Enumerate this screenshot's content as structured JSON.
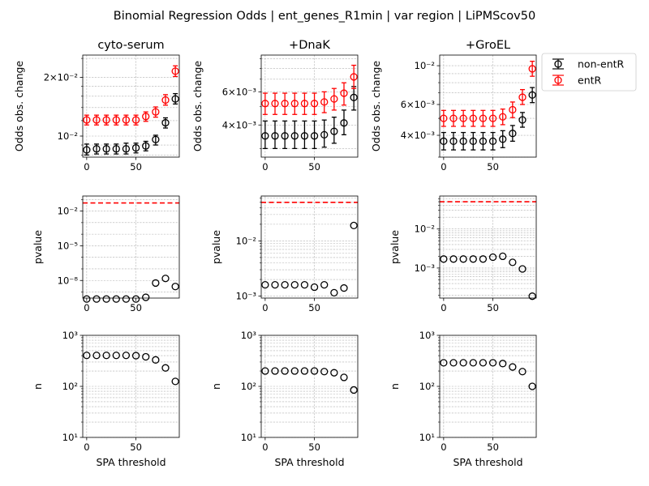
{
  "figure": {
    "title": "Binomial Regression Odds | ent_genes_R1min | var region | LiPMScov50"
  },
  "legend": {
    "placement": "right of top-right panel",
    "entries": [
      {
        "label": "non-entR",
        "color": "#000000"
      },
      {
        "label": "entR",
        "color": "#ff0000"
      }
    ]
  },
  "chart_data": [
    {
      "type": "scatter",
      "subplot": "odds-cyto-serum",
      "title": "cyto-serum",
      "xlabel": "",
      "ylabel": "Odds obs. change",
      "xlim": [
        -4,
        94
      ],
      "yscale": "log",
      "ylim": [
        0.0078,
        0.026
      ],
      "grid": true,
      "xticks": [
        0,
        50
      ],
      "xticklabels": [
        "0",
        "50"
      ],
      "yticks": [
        0.01,
        0.02
      ],
      "yticklabels": [
        "10⁻²",
        "2×10⁻²"
      ],
      "minor_yticks": [
        0.008,
        0.009,
        0.012,
        0.014,
        0.016,
        0.018,
        0.025
      ],
      "series": [
        {
          "name": "non-entR",
          "color": "#000000",
          "x": [
            0,
            10,
            20,
            30,
            40,
            50,
            60,
            70,
            80,
            90
          ],
          "y": [
            0.0085,
            0.0086,
            0.0086,
            0.0086,
            0.0086,
            0.0087,
            0.0089,
            0.0096,
            0.0117,
            0.0155
          ],
          "yerr_low": [
            0.008,
            0.0081,
            0.0081,
            0.0081,
            0.0081,
            0.0082,
            0.0084,
            0.009,
            0.011,
            0.0146
          ],
          "yerr_high": [
            0.0091,
            0.0091,
            0.0091,
            0.0091,
            0.0092,
            0.0092,
            0.0094,
            0.0101,
            0.0124,
            0.0165
          ]
        },
        {
          "name": "entR",
          "color": "#ff0000",
          "x": [
            0,
            10,
            20,
            30,
            40,
            50,
            60,
            70,
            80,
            90
          ],
          "y": [
            0.0121,
            0.0121,
            0.0121,
            0.0121,
            0.0121,
            0.0121,
            0.0126,
            0.0133,
            0.0153,
            0.0215
          ],
          "yerr_low": [
            0.0114,
            0.0114,
            0.0114,
            0.0114,
            0.0114,
            0.0114,
            0.0119,
            0.0125,
            0.0144,
            0.0202
          ],
          "yerr_high": [
            0.0128,
            0.0128,
            0.0128,
            0.0128,
            0.0128,
            0.0128,
            0.0133,
            0.0141,
            0.0163,
            0.0229
          ]
        }
      ]
    },
    {
      "type": "scatter",
      "subplot": "odds-dnak",
      "title": "+DnaK",
      "xlabel": "",
      "ylabel": "Odds obs. change",
      "xlim": [
        -4,
        94
      ],
      "yscale": "log",
      "ylim": [
        0.0027,
        0.0094
      ],
      "grid": true,
      "xticks": [
        0,
        50
      ],
      "xticklabels": [
        "0",
        "50"
      ],
      "yticks": [
        0.004,
        0.006
      ],
      "yticklabels": [
        "4×10⁻³",
        "6×10⁻³"
      ],
      "minor_yticks": [
        0.003,
        0.005,
        0.007,
        0.008,
        0.009
      ],
      "series": [
        {
          "name": "non-entR",
          "color": "#000000",
          "x": [
            0,
            10,
            20,
            30,
            40,
            50,
            60,
            70,
            80,
            90
          ],
          "y": [
            0.0035,
            0.0035,
            0.0035,
            0.0035,
            0.0035,
            0.0035,
            0.00355,
            0.0037,
            0.0041,
            0.0056
          ],
          "yerr_low": [
            0.003,
            0.003,
            0.003,
            0.003,
            0.003,
            0.003,
            0.00305,
            0.0032,
            0.00355,
            0.0048
          ],
          "yerr_high": [
            0.0042,
            0.0042,
            0.0042,
            0.0042,
            0.0042,
            0.0042,
            0.00425,
            0.0044,
            0.0048,
            0.0064
          ]
        },
        {
          "name": "entR",
          "color": "#ff0000",
          "x": [
            0,
            10,
            20,
            30,
            40,
            50,
            60,
            70,
            80,
            90
          ],
          "y": [
            0.0052,
            0.0052,
            0.0052,
            0.0052,
            0.0052,
            0.0052,
            0.0053,
            0.0055,
            0.0059,
            0.0072
          ],
          "yerr_low": [
            0.00455,
            0.00455,
            0.00455,
            0.00455,
            0.00455,
            0.00455,
            0.00465,
            0.0048,
            0.0051,
            0.00625
          ],
          "yerr_high": [
            0.0059,
            0.0059,
            0.0059,
            0.0059,
            0.0059,
            0.0059,
            0.006,
            0.00625,
            0.0067,
            0.0083
          ]
        }
      ]
    },
    {
      "type": "scatter",
      "subplot": "odds-groel",
      "title": "+GroEL",
      "xlabel": "",
      "ylabel": "Odds obs. change",
      "xlim": [
        -4,
        94
      ],
      "yscale": "log",
      "ylim": [
        0.003,
        0.0115
      ],
      "grid": true,
      "xticks": [
        0,
        50
      ],
      "xticklabels": [
        "0",
        "50"
      ],
      "yticks": [
        0.004,
        0.006,
        0.01
      ],
      "yticklabels": [
        "4×10⁻³",
        "6×10⁻³",
        "10⁻²"
      ],
      "minor_yticks": [
        0.003,
        0.005,
        0.007,
        0.008,
        0.009
      ],
      "series": [
        {
          "name": "non-entR",
          "color": "#000000",
          "x": [
            0,
            10,
            20,
            30,
            40,
            50,
            60,
            70,
            80,
            90
          ],
          "y": [
            0.0037,
            0.0037,
            0.0037,
            0.0037,
            0.0037,
            0.0037,
            0.0038,
            0.0041,
            0.0049,
            0.0068
          ],
          "yerr_low": [
            0.0033,
            0.0033,
            0.0033,
            0.0033,
            0.0033,
            0.0033,
            0.0034,
            0.0037,
            0.00445,
            0.00615
          ],
          "yerr_high": [
            0.00415,
            0.00415,
            0.00415,
            0.00415,
            0.00415,
            0.00415,
            0.00425,
            0.00455,
            0.0054,
            0.0075
          ]
        },
        {
          "name": "entR",
          "color": "#ff0000",
          "x": [
            0,
            10,
            20,
            30,
            40,
            50,
            60,
            70,
            80,
            90
          ],
          "y": [
            0.005,
            0.005,
            0.005,
            0.005,
            0.005,
            0.005,
            0.0051,
            0.0056,
            0.0066,
            0.0096
          ],
          "yerr_low": [
            0.0045,
            0.0045,
            0.0045,
            0.0045,
            0.0045,
            0.0045,
            0.0046,
            0.00505,
            0.006,
            0.0087
          ],
          "yerr_high": [
            0.00555,
            0.00555,
            0.00555,
            0.00555,
            0.00555,
            0.00555,
            0.00565,
            0.0062,
            0.0073,
            0.0106
          ]
        }
      ]
    },
    {
      "type": "scatter",
      "subplot": "pvalue-cyto-serum",
      "title": "",
      "xlabel": "",
      "ylabel": "pvalue",
      "xlim": [
        -4,
        94
      ],
      "yscale": "log",
      "ylim": [
        3e-10,
        0.2
      ],
      "grid": true,
      "xticks": [
        0,
        50
      ],
      "xticklabels": [
        "0",
        "50"
      ],
      "yticks": [
        1e-08,
        1e-05,
        0.01
      ],
      "yticklabels": [
        "10⁻⁸",
        "10⁻⁵",
        "10⁻²"
      ],
      "minor_yticks": [
        1e-09,
        1e-07,
        1e-06,
        0.0001,
        0.001,
        0.1
      ],
      "reference_line": {
        "y": 0.05,
        "color": "#ff0000",
        "style": "dashed"
      },
      "series": [
        {
          "name": "",
          "color": "#000000",
          "marker": "open-circle",
          "x": [
            0,
            10,
            20,
            30,
            40,
            50,
            60,
            70,
            80,
            90
          ],
          "y": [
            2.5e-10,
            2.5e-10,
            2.5e-10,
            2.5e-10,
            2.5e-10,
            2.5e-10,
            3.5e-10,
            6e-09,
            1.5e-08,
            3e-09
          ]
        }
      ]
    },
    {
      "type": "scatter",
      "subplot": "pvalue-dnak",
      "title": "",
      "xlabel": "",
      "ylabel": "pvalue",
      "xlim": [
        -4,
        94
      ],
      "yscale": "log",
      "ylim": [
        0.00092,
        0.065
      ],
      "grid": true,
      "xticks": [
        0,
        50
      ],
      "xticklabels": [
        "0",
        "50"
      ],
      "yticks": [
        0.001,
        0.01
      ],
      "yticklabels": [
        "10⁻³",
        "10⁻²"
      ],
      "minor_yticks": [
        0.002,
        0.003,
        0.004,
        0.005,
        0.006,
        0.007,
        0.008,
        0.009,
        0.02,
        0.03,
        0.04,
        0.05,
        0.06
      ],
      "reference_line": {
        "y": 0.05,
        "color": "#ff0000",
        "style": "dashed"
      },
      "series": [
        {
          "name": "",
          "color": "#000000",
          "marker": "open-circle",
          "x": [
            0,
            10,
            20,
            30,
            40,
            50,
            60,
            70,
            80,
            90
          ],
          "y": [
            0.0016,
            0.0016,
            0.0016,
            0.0016,
            0.0016,
            0.00145,
            0.0016,
            0.00115,
            0.0014,
            0.019
          ]
        }
      ]
    },
    {
      "type": "scatter",
      "subplot": "pvalue-groel",
      "title": "",
      "xlabel": "",
      "ylabel": "pvalue",
      "xlim": [
        -4,
        94
      ],
      "yscale": "log",
      "ylim": [
        0.00017,
        0.07
      ],
      "grid": true,
      "xticks": [
        0,
        50
      ],
      "xticklabels": [
        "0",
        "50"
      ],
      "yticks": [
        0.001,
        0.01
      ],
      "yticklabels": [
        "10⁻³",
        "10⁻²"
      ],
      "minor_yticks": [
        0.0002,
        0.0003,
        0.0004,
        0.0005,
        0.0006,
        0.0007,
        0.0008,
        0.0009,
        0.002,
        0.003,
        0.004,
        0.005,
        0.006,
        0.007,
        0.008,
        0.009,
        0.02,
        0.03,
        0.04,
        0.05,
        0.06
      ],
      "reference_line": {
        "y": 0.05,
        "color": "#ff0000",
        "style": "dashed"
      },
      "series": [
        {
          "name": "",
          "color": "#000000",
          "marker": "open-circle",
          "x": [
            0,
            10,
            20,
            30,
            40,
            50,
            60,
            70,
            80,
            90
          ],
          "y": [
            0.0017,
            0.0017,
            0.0017,
            0.0017,
            0.0017,
            0.0019,
            0.002,
            0.0014,
            0.00095,
            0.00019
          ]
        }
      ]
    },
    {
      "type": "scatter",
      "subplot": "n-cyto-serum",
      "title": "",
      "xlabel": "SPA threshold",
      "ylabel": "n",
      "xlim": [
        -4,
        94
      ],
      "yscale": "log",
      "ylim": [
        10,
        1000
      ],
      "grid": true,
      "xticks": [
        0,
        50
      ],
      "xticklabels": [
        "0",
        "50"
      ],
      "yticks": [
        10,
        100,
        1000
      ],
      "yticklabels": [
        "10¹",
        "10²",
        "10³"
      ],
      "minor_yticks": [
        20,
        30,
        40,
        50,
        60,
        70,
        80,
        90,
        200,
        300,
        400,
        500,
        600,
        700,
        800,
        900
      ],
      "series": [
        {
          "name": "",
          "color": "#000000",
          "marker": "open-circle",
          "x": [
            0,
            10,
            20,
            30,
            40,
            50,
            60,
            70,
            80,
            90
          ],
          "y": [
            405,
            405,
            405,
            405,
            405,
            400,
            380,
            330,
            230,
            125
          ]
        }
      ]
    },
    {
      "type": "scatter",
      "subplot": "n-dnak",
      "title": "",
      "xlabel": "SPA threshold",
      "ylabel": "n",
      "xlim": [
        -4,
        94
      ],
      "yscale": "log",
      "ylim": [
        10,
        1000
      ],
      "grid": true,
      "xticks": [
        0,
        50
      ],
      "xticklabels": [
        "0",
        "50"
      ],
      "yticks": [
        10,
        100,
        1000
      ],
      "yticklabels": [
        "10¹",
        "10²",
        "10³"
      ],
      "minor_yticks": [
        20,
        30,
        40,
        50,
        60,
        70,
        80,
        90,
        200,
        300,
        400,
        500,
        600,
        700,
        800,
        900
      ],
      "series": [
        {
          "name": "",
          "color": "#000000",
          "marker": "open-circle",
          "x": [
            0,
            10,
            20,
            30,
            40,
            50,
            60,
            70,
            80,
            90
          ],
          "y": [
            200,
            200,
            200,
            200,
            200,
            200,
            195,
            185,
            150,
            85
          ]
        }
      ]
    },
    {
      "type": "scatter",
      "subplot": "n-groel",
      "title": "",
      "xlabel": "SPA threshold",
      "ylabel": "n",
      "xlim": [
        -4,
        94
      ],
      "yscale": "log",
      "ylim": [
        10,
        1000
      ],
      "grid": true,
      "xticks": [
        0,
        50
      ],
      "xticklabels": [
        "0",
        "50"
      ],
      "yticks": [
        10,
        100,
        1000
      ],
      "yticklabels": [
        "10¹",
        "10²",
        "10³"
      ],
      "minor_yticks": [
        20,
        30,
        40,
        50,
        60,
        70,
        80,
        90,
        200,
        300,
        400,
        500,
        600,
        700,
        800,
        900
      ],
      "series": [
        {
          "name": "",
          "color": "#000000",
          "marker": "open-circle",
          "x": [
            0,
            10,
            20,
            30,
            40,
            50,
            60,
            70,
            80,
            90
          ],
          "y": [
            290,
            290,
            290,
            290,
            290,
            290,
            280,
            240,
            195,
            100
          ]
        }
      ]
    }
  ]
}
